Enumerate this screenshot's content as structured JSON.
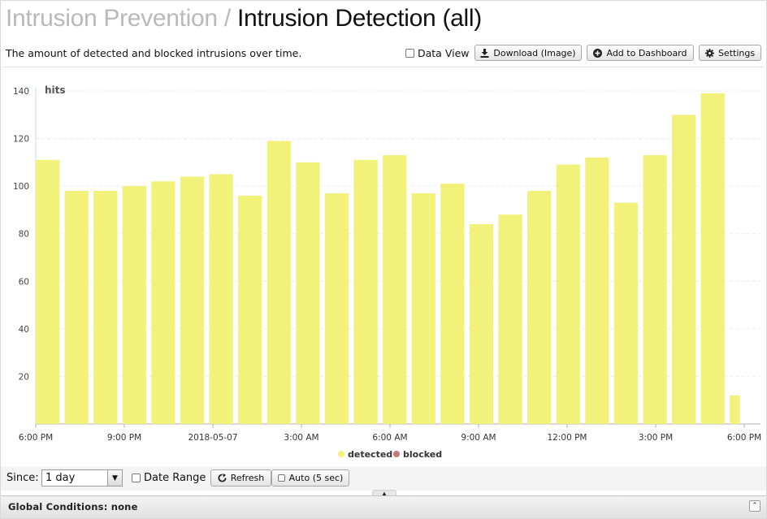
{
  "header": {
    "breadcrumb_parent": "Intrusion Prevention",
    "separator": "/",
    "title": "Intrusion Detection (all)"
  },
  "description": "The amount of detected and blocked intrusions over time.",
  "toolbar": {
    "data_view_label": "Data View",
    "download_label": "Download (Image)",
    "add_dashboard_label": "Add to Dashboard",
    "settings_label": "Settings"
  },
  "chart_data": {
    "type": "bar",
    "ylabel": "hits",
    "ylim": [
      0,
      140
    ],
    "yticks": [
      20,
      40,
      60,
      80,
      100,
      120,
      140
    ],
    "xticks": [
      "6:00 PM",
      "9:00 PM",
      "2018-05-07",
      "3:00 AM",
      "6:00 AM",
      "9:00 AM",
      "12:00 PM",
      "3:00 PM",
      "6:00 PM"
    ],
    "grid": true,
    "legend_position": "bottom-center",
    "series": [
      {
        "name": "detected",
        "color": "#f2f27a",
        "values": [
          111,
          98,
          98,
          100,
          102,
          104,
          105,
          96,
          119,
          110,
          97,
          111,
          113,
          97,
          101,
          84,
          88,
          98,
          109,
          112,
          93,
          113,
          130,
          139,
          12
        ]
      },
      {
        "name": "blocked",
        "color": "#c27a7a",
        "values": []
      }
    ]
  },
  "controls": {
    "since_label": "Since:",
    "since_value": "1 day",
    "date_range_label": "Date Range",
    "refresh_label": "Refresh",
    "auto_label": "Auto (5 sec)"
  },
  "footer": {
    "global_conditions": "Global Conditions: none"
  },
  "icons": {
    "download": "download-icon",
    "add": "plus-circle-icon",
    "settings": "gear-icon",
    "refresh": "refresh-icon",
    "collapse": "double-chevron-up-icon"
  }
}
